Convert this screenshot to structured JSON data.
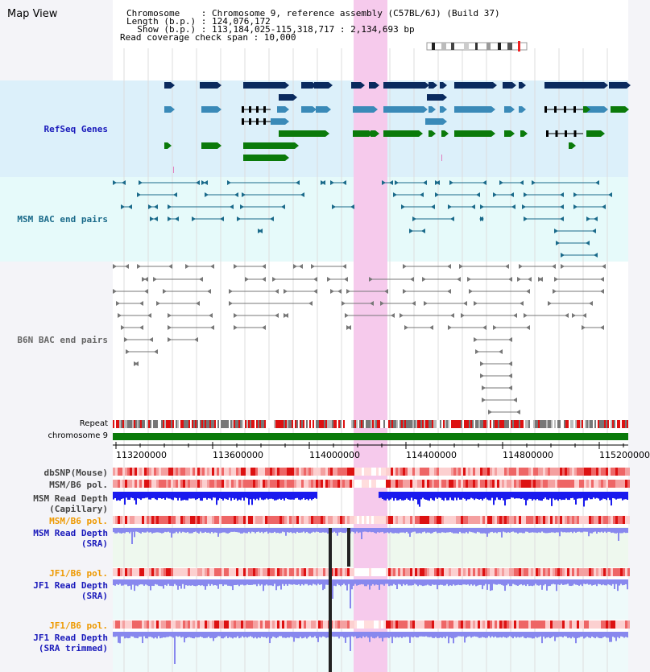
{
  "view_title": "Map View",
  "info": {
    "chromosome": "Chromosome    : Chromosome 9, reference assembly (C57BL/6J) (Build 37)",
    "length": "Length (b.p.) : 124,076,172",
    "show": "  Show (b.p.) : 113,184,025-115,318,717 : 2,134,693 bp",
    "coverage": "Read coverage check span : 10,000"
  },
  "tracks": {
    "refseq": "RefSeq Genes",
    "msm_bac": "MSM BAC end pairs",
    "b6n_bac": "B6N BAC end pairs",
    "repeat": "Repeat",
    "chromosome": "chromosome 9",
    "dbsnp": "dbSNP(Mouse)",
    "msm_b6_pol_1": "MSM/B6 pol.",
    "msm_depth_cap": "MSM Read Depth\n(Capillary)",
    "msm_b6_pol_2": "MSM/B6 pol.",
    "msm_depth_sra": "MSM Read Depth\n(SRA)",
    "jf1_b6_pol_1": "JF1/B6 pol.",
    "jf1_depth_sra": "JF1 Read Depth\n(SRA)",
    "jf1_b6_pol_2": "JF1/B6 pol.",
    "jf1_depth_trim": "JF1 Read Depth\n(SRA trimmed)"
  },
  "axis_ticks": [
    "113200000",
    "113600000",
    "114000000",
    "114400000",
    "114800000",
    "115200000"
  ],
  "colors": {
    "refseq_bg": "#dcf0fa",
    "msm_bg": "#e6fafa",
    "highlight": "#f8d8f0",
    "gene_navy": "#0a2a5e",
    "gene_mid": "#3a8ab8",
    "gene_green": "#0a7a0a",
    "msm_line": "#1a6a8a",
    "b6n_line": "#777777",
    "chrom_green": "#0a7a0a",
    "depth_blue": "#1a1aee",
    "depth_light": "#8888ee",
    "pol_red": "#ee2222",
    "orange_label": "#ee9900",
    "blue_label": "#1a1abb"
  }
}
